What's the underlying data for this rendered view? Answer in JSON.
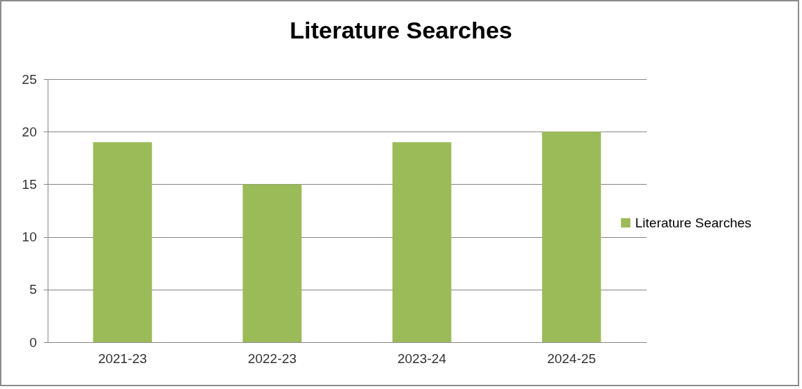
{
  "chart_data": {
    "type": "bar",
    "title": "Literature Searches",
    "categories": [
      "2021-23",
      "2022-23",
      "2023-24",
      "2024-25"
    ],
    "series": [
      {
        "name": "Literature Searches",
        "color": "#9bbb59",
        "values": [
          19,
          15,
          19,
          20
        ]
      }
    ],
    "ylim": [
      0,
      25
    ],
    "yticks": [
      0,
      5,
      10,
      15,
      20,
      25
    ],
    "grid": "y",
    "legend": "right"
  }
}
